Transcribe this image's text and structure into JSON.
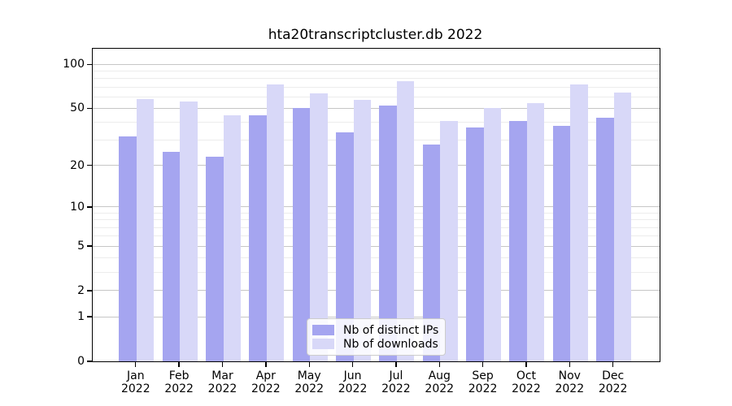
{
  "title": "hta20transcriptcluster.db 2022",
  "colors": {
    "ips": "#a5a5f0",
    "downloads": "#d8d8f8",
    "grid_major": "#c6c6c6",
    "grid_minor": "#ececec",
    "axis": "#000000",
    "text": "#000000",
    "legend_border": "#cccccc"
  },
  "legend": {
    "items": [
      {
        "name": "ips",
        "label": "Nb of distinct IPs"
      },
      {
        "name": "downloads",
        "label": "Nb of downloads"
      }
    ]
  },
  "y_axis": {
    "scale": "log1p",
    "tick_labels": [
      "0",
      "1",
      "2",
      "5",
      "10",
      "20",
      "50",
      "100"
    ],
    "major_ticks": [
      0,
      1,
      2,
      5,
      10,
      20,
      50,
      100
    ],
    "minor_ticks": [
      3,
      4,
      6,
      7,
      8,
      9,
      30,
      40,
      60,
      70,
      80,
      90
    ]
  },
  "x_axis": {
    "months": [
      "Jan",
      "Feb",
      "Mar",
      "Apr",
      "May",
      "Jun",
      "Jul",
      "Aug",
      "Sep",
      "Oct",
      "Nov",
      "Dec"
    ],
    "year": "2022"
  },
  "chart_data": {
    "type": "bar",
    "title": "hta20transcriptcluster.db 2022",
    "categories": [
      "Jan 2022",
      "Feb 2022",
      "Mar 2022",
      "Apr 2022",
      "May 2022",
      "Jun 2022",
      "Jul 2022",
      "Aug 2022",
      "Sep 2022",
      "Oct 2022",
      "Nov 2022",
      "Dec 2022"
    ],
    "series": [
      {
        "name": "Nb of distinct IPs",
        "color": "#a5a5f0",
        "values": [
          32,
          25,
          23,
          45,
          50,
          34,
          52,
          28,
          37,
          41,
          38,
          43
        ]
      },
      {
        "name": "Nb of downloads",
        "color": "#d8d8f8",
        "values": [
          58,
          56,
          45,
          73,
          63,
          57,
          77,
          41,
          50,
          54,
          73,
          64
        ]
      }
    ],
    "xlabel": "",
    "ylabel": "",
    "yscale": "log1p",
    "yticks": [
      0,
      1,
      2,
      5,
      10,
      20,
      50,
      100
    ],
    "ylim": [
      0,
      128
    ],
    "grid": true,
    "legend_position": "lower center"
  }
}
